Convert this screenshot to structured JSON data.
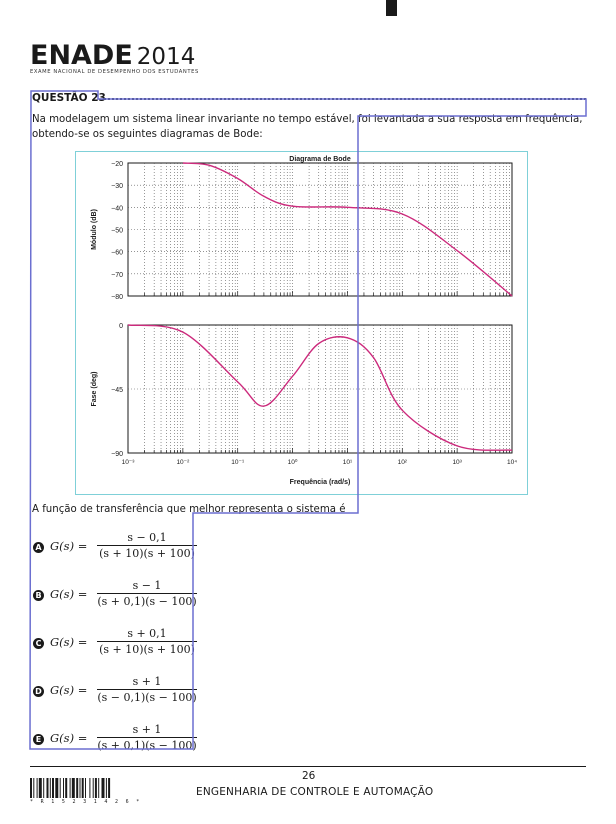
{
  "header": {
    "brand": "ENADE",
    "year": "2014",
    "subtitle": "EXAME NACIONAL DE DESEMPENHO DOS ESTUDANTES"
  },
  "question": {
    "label": "QUESTÃO 23",
    "statement_line1": "Na modelagem um sistema linear invariante no tempo estável, foi levantada a sua resposta em frequência,",
    "statement_line2": "obtendo-se os seguintes diagramas de Bode:",
    "prompt": "A função de transferência que melhor representa o sistema é",
    "options": [
      {
        "letter": "A",
        "lhs": "G(s) =",
        "numerator": "s − 0,1",
        "denominator": "(s + 10)(s + 100)"
      },
      {
        "letter": "B",
        "lhs": "G(s) =",
        "numerator": "s − 1",
        "denominator": "(s + 0,1)(s − 100)"
      },
      {
        "letter": "C",
        "lhs": "G(s) =",
        "numerator": "s + 0,1",
        "denominator": "(s + 10)(s + 100)"
      },
      {
        "letter": "D",
        "lhs": "G(s) =",
        "numerator": "s + 1",
        "denominator": "(s − 0,1)(s − 100)"
      },
      {
        "letter": "E",
        "lhs": "G(s) =",
        "numerator": "s + 1",
        "denominator": "(s + 0,1)(s − 100)"
      }
    ]
  },
  "chart_data": [
    {
      "type": "line",
      "title": "Diagrama de Bode",
      "ylabel": "Módulo (dB)",
      "xlabel": "",
      "xscale": "log",
      "xlim": [
        0.001,
        10000
      ],
      "ylim": [
        -80,
        -20
      ],
      "yticks": [
        "−20",
        "−30",
        "−40",
        "−50",
        "−60",
        "−70",
        "−80"
      ],
      "grid": "dotted",
      "color": "#cc2a7c",
      "x": [
        0.01,
        0.03,
        0.1,
        0.3,
        1,
        10,
        100,
        1000,
        10000
      ],
      "y": [
        -20,
        -21,
        -27,
        -35,
        -39.5,
        -40,
        -43,
        -59.5,
        -80
      ]
    },
    {
      "type": "line",
      "title": "",
      "ylabel": "Fase (deg)",
      "xlabel": "Frequência (rad/s)",
      "xscale": "log",
      "xlim": [
        0.001,
        10000
      ],
      "ylim": [
        -90,
        0
      ],
      "yticks": [
        "0",
        "−45",
        "−90"
      ],
      "xticks": [
        "10⁻³",
        "10⁻²",
        "10⁻¹",
        "10⁰",
        "10¹",
        "10²",
        "10³",
        "10⁴"
      ],
      "grid": "dotted",
      "color": "#cc2a7c",
      "x": [
        0.001,
        0.01,
        0.1,
        0.3,
        1,
        3,
        10,
        30,
        100,
        1000,
        10000
      ],
      "y": [
        0,
        -5,
        -40,
        -57,
        -36,
        -13,
        -9,
        -23,
        -60,
        -85,
        -88
      ]
    }
  ],
  "footer": {
    "page_number": "26",
    "title": "ENGENHARIA DE CONTROLE E AUTOMAÇÃO",
    "barcode_digits": "* R 1 5 2 3 1 4 2 6 *"
  }
}
